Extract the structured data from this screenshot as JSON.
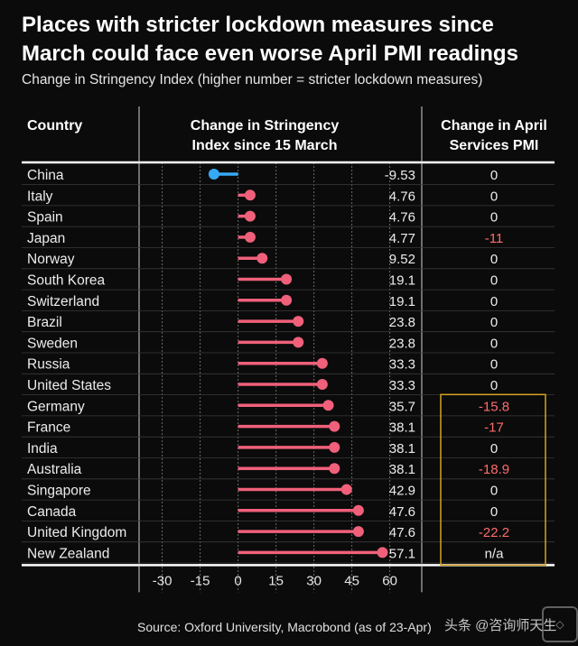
{
  "title": "Places with stricter lockdown measures since March could face even worse April PMI readings",
  "subtitle": "Change in Stringency Index (higher number = stricter lockdown measures)",
  "source": "Source: Oxford University, Macrobond (as of 23-Apr)",
  "watermark": "头条 @咨询师天生",
  "colors": {
    "background": "#0b0b0b",
    "positive": "#f0607a",
    "negative": "#36a9f5",
    "negative_pmi": "#ff6b6b",
    "highlight_box": "#d6a321",
    "grid": "#6a6a6a"
  },
  "chart_data": {
    "type": "lollipop",
    "headers": {
      "country": "Country",
      "change": "Change in Stringency Index since 15 March",
      "pmi": "Change in April Services PMI"
    },
    "xlim": [
      -37,
      63
    ],
    "xticks": [
      -30,
      -15,
      0,
      15,
      30,
      45,
      60
    ],
    "rows": [
      {
        "country": "China",
        "change": -9.53,
        "change_label": "-9.53",
        "pmi": "0"
      },
      {
        "country": "Italy",
        "change": 4.76,
        "change_label": "4.76",
        "pmi": "0"
      },
      {
        "country": "Spain",
        "change": 4.76,
        "change_label": "4.76",
        "pmi": "0"
      },
      {
        "country": "Japan",
        "change": 4.77,
        "change_label": "4.77",
        "pmi": "-11"
      },
      {
        "country": "Norway",
        "change": 9.52,
        "change_label": "9.52",
        "pmi": "0"
      },
      {
        "country": "South Korea",
        "change": 19.1,
        "change_label": "19.1",
        "pmi": "0"
      },
      {
        "country": "Switzerland",
        "change": 19.1,
        "change_label": "19.1",
        "pmi": "0"
      },
      {
        "country": "Brazil",
        "change": 23.8,
        "change_label": "23.8",
        "pmi": "0"
      },
      {
        "country": "Sweden",
        "change": 23.8,
        "change_label": "23.8",
        "pmi": "0"
      },
      {
        "country": "Russia",
        "change": 33.3,
        "change_label": "33.3",
        "pmi": "0"
      },
      {
        "country": "United States",
        "change": 33.3,
        "change_label": "33.3",
        "pmi": "0"
      },
      {
        "country": "Germany",
        "change": 35.7,
        "change_label": "35.7",
        "pmi": "-15.8"
      },
      {
        "country": "France",
        "change": 38.1,
        "change_label": "38.1",
        "pmi": "-17"
      },
      {
        "country": "India",
        "change": 38.1,
        "change_label": "38.1",
        "pmi": "0"
      },
      {
        "country": "Australia",
        "change": 38.1,
        "change_label": "38.1",
        "pmi": "-18.9"
      },
      {
        "country": "Singapore",
        "change": 42.9,
        "change_label": "42.9",
        "pmi": "0"
      },
      {
        "country": "Canada",
        "change": 47.6,
        "change_label": "47.6",
        "pmi": "0"
      },
      {
        "country": "United Kingdom",
        "change": 47.6,
        "change_label": "47.6",
        "pmi": "-22.2"
      },
      {
        "country": "New Zealand",
        "change": 57.1,
        "change_label": "57.1",
        "pmi": "n/a"
      }
    ],
    "highlight_rows": [
      "Germany",
      "New Zealand"
    ]
  }
}
